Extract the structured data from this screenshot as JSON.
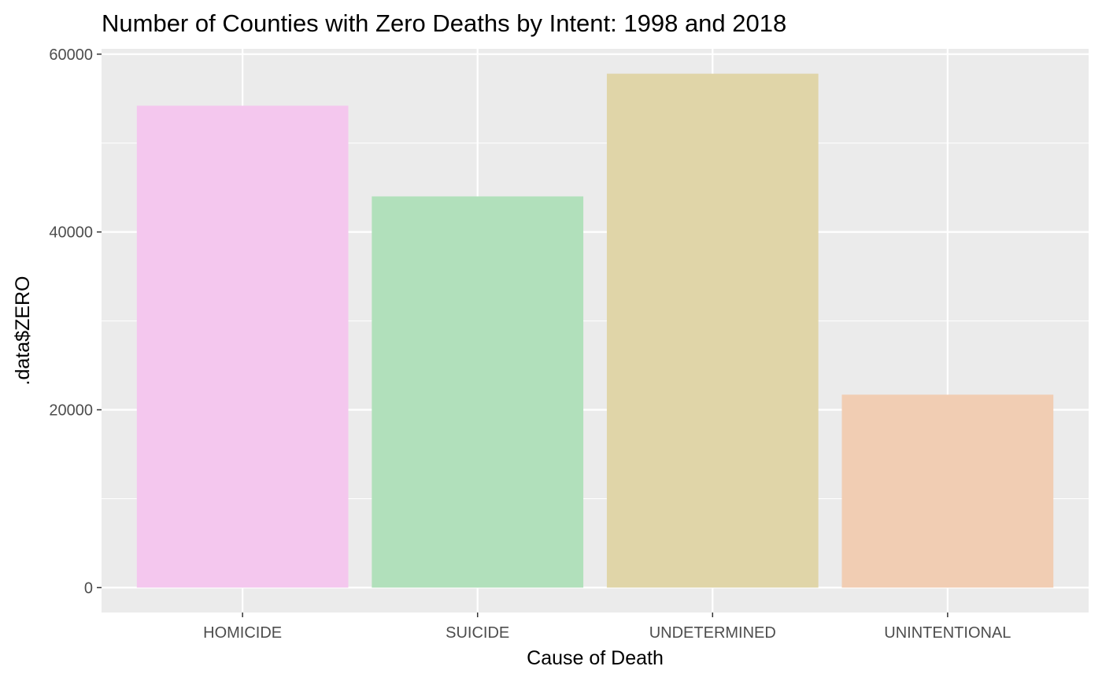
{
  "chart_data": {
    "type": "bar",
    "title": "Number of Counties with Zero Deaths by Intent: 1998 and 2018",
    "xlabel": "Cause of Death",
    "ylabel": ".data$ZERO",
    "categories": [
      "HOMICIDE",
      "SUICIDE",
      "UNDETERMINED",
      "UNINTENTIONAL"
    ],
    "values": [
      54200,
      44000,
      57800,
      21700
    ],
    "colors": [
      "#f4c7ee",
      "#b1e0bb",
      "#e0d5a8",
      "#f1cdb3"
    ],
    "ylim": [
      -2800,
      60600
    ],
    "yticks": [
      0,
      20000,
      40000,
      60000
    ],
    "ytick_labels": [
      "0",
      "20000",
      "40000",
      "60000"
    ],
    "grid": true,
    "panel_background": "#ebebeb",
    "legend": "none"
  }
}
